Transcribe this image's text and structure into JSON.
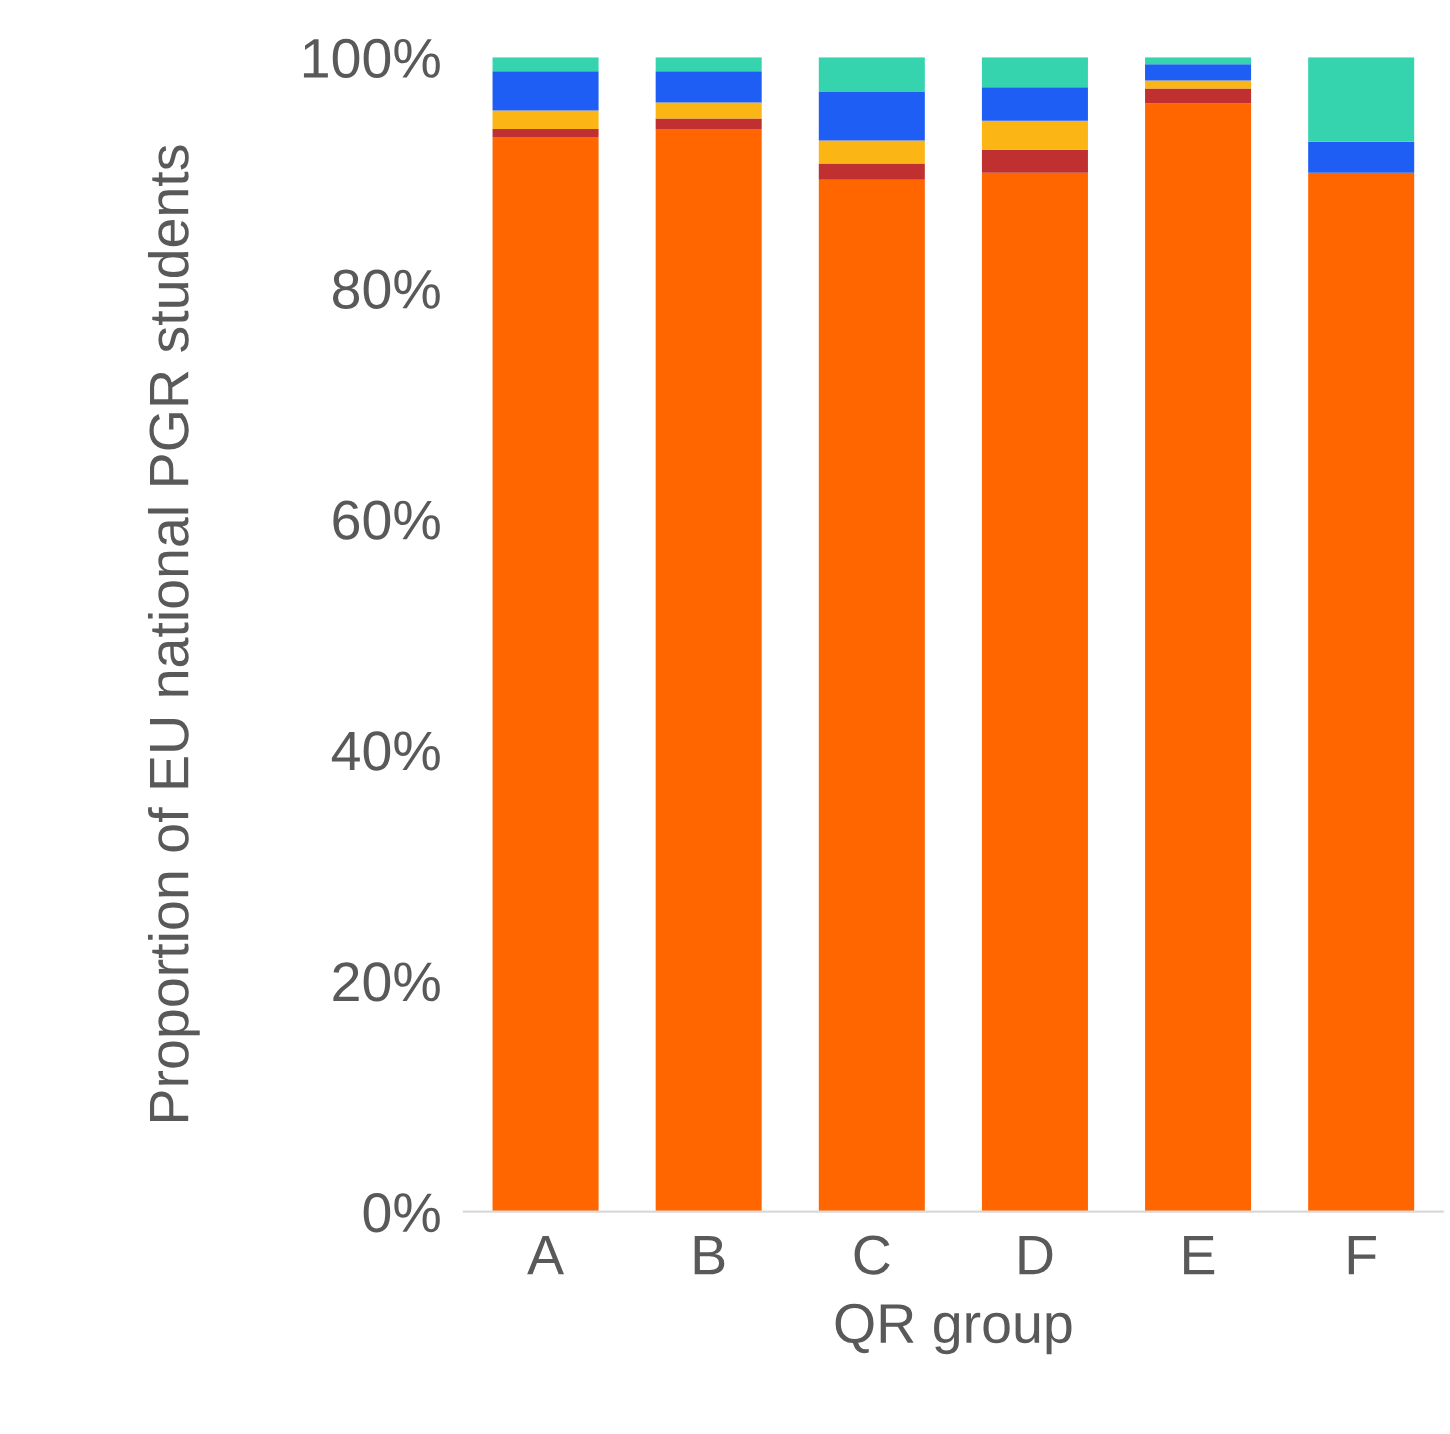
{
  "chart_data": {
    "type": "bar",
    "stacked": true,
    "xlabel": "QR group",
    "ylabel": "Proportion of EU national PGR students",
    "categories": [
      "A",
      "B",
      "C",
      "D",
      "E",
      "F"
    ],
    "series": [
      {
        "color": "#ff6600",
        "values": [
          93.1,
          93.8,
          89.4,
          90.0,
          96.0,
          90.0
        ]
      },
      {
        "color": "#c03030",
        "values": [
          0.7,
          0.9,
          1.4,
          2.0,
          1.3,
          0
        ]
      },
      {
        "color": "#fbb515",
        "values": [
          1.6,
          1.4,
          2.0,
          2.5,
          0.7,
          0
        ]
      },
      {
        "color": "#1f5ef5",
        "values": [
          3.4,
          2.7,
          4.2,
          2.9,
          1.4,
          2.7
        ]
      },
      {
        "color": "#36d4ae",
        "values": [
          1.2,
          1.2,
          3.0,
          2.6,
          0.6,
          7.3
        ]
      }
    ],
    "ylim": [
      0,
      100
    ],
    "yticks": [
      {
        "value": 0,
        "label": "0%"
      },
      {
        "value": 20,
        "label": "20%"
      },
      {
        "value": 40,
        "label": "40%"
      },
      {
        "value": 60,
        "label": "60%"
      },
      {
        "value": 80,
        "label": "80%"
      },
      {
        "value": 100,
        "label": "100%"
      }
    ],
    "grid": false,
    "legend": false
  }
}
